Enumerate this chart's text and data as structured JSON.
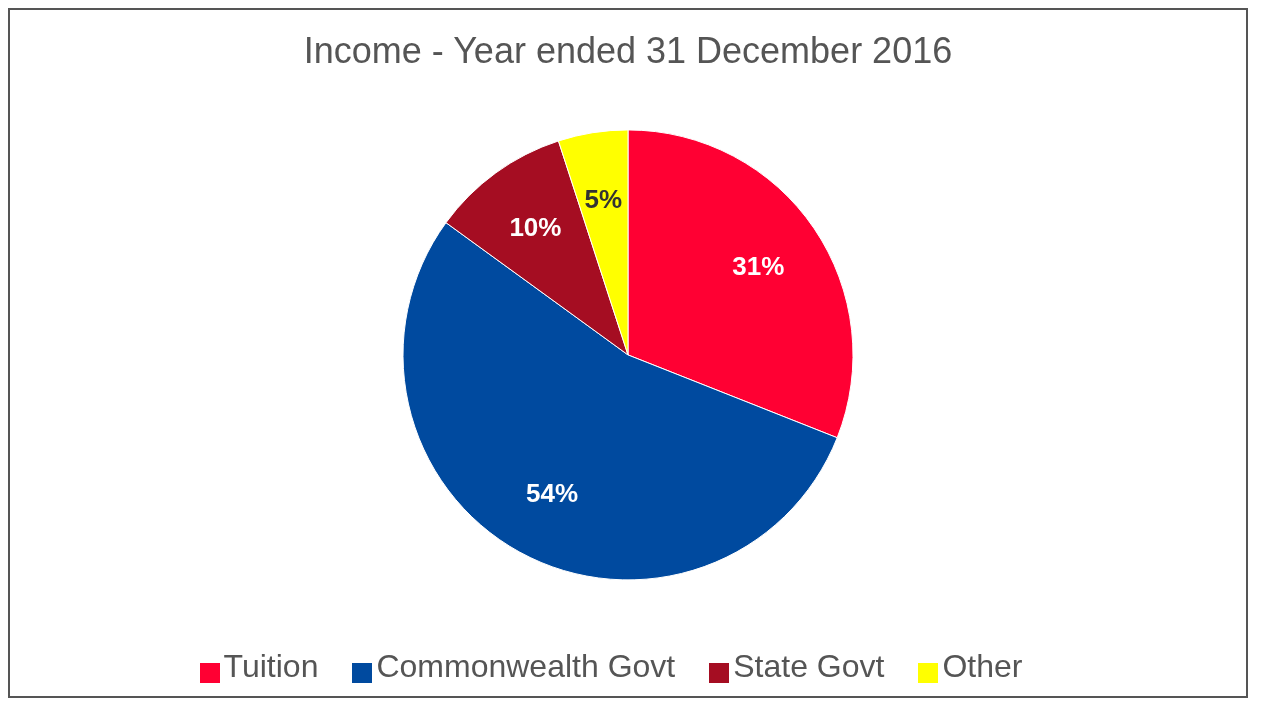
{
  "chart_data": {
    "type": "pie",
    "title": "Income - Year ended 31 December 2016",
    "categories": [
      "Tuition",
      "Commonwealth Govt",
      "State Govt",
      "Other"
    ],
    "values": [
      31,
      54,
      10,
      5
    ],
    "colors": [
      "#ff0033",
      "#004a9f",
      "#a50d22",
      "#ffff00"
    ],
    "value_labels": [
      "31%",
      "54%",
      "10%",
      "5%"
    ],
    "legend": "bottom"
  }
}
